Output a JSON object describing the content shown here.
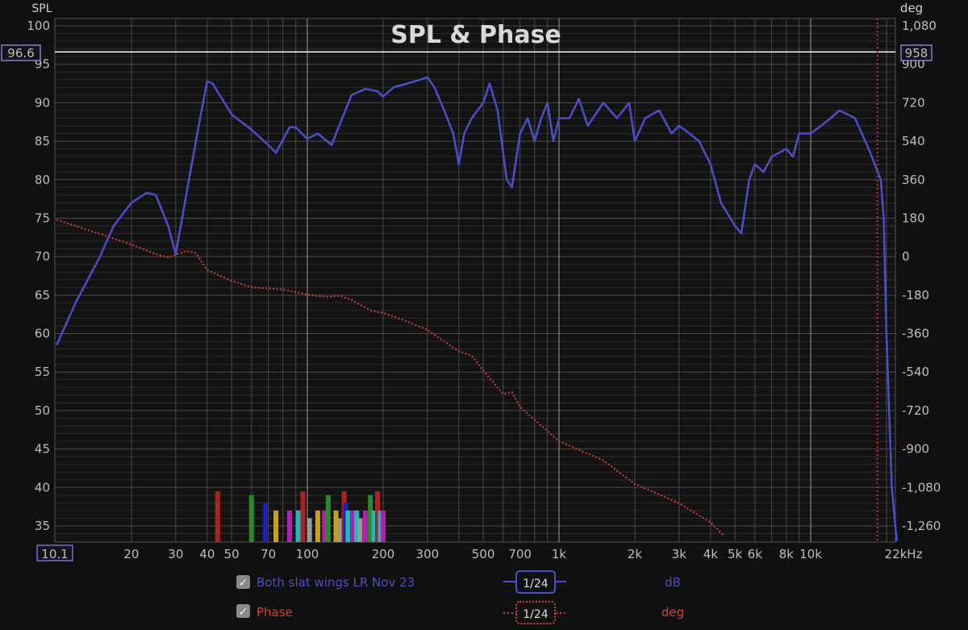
{
  "chart_data": {
    "type": "line",
    "title": "SPL & Phase",
    "ylabel": "SPL",
    "y2label": "deg",
    "xunit": "kHz",
    "xlim": [
      10.1,
      22000
    ],
    "xscale": "log",
    "ylim": [
      33,
      101
    ],
    "y2lim": [
      -1332,
      1116
    ],
    "grid": true,
    "x_ticks": [
      {
        "v": 10.1,
        "label": "10.1",
        "boxed": true
      },
      {
        "v": 20,
        "label": "20"
      },
      {
        "v": 30,
        "label": "30"
      },
      {
        "v": 40,
        "label": "40"
      },
      {
        "v": 50,
        "label": "50"
      },
      {
        "v": 70,
        "label": "70"
      },
      {
        "v": 100,
        "label": "100"
      },
      {
        "v": 200,
        "label": "200"
      },
      {
        "v": 300,
        "label": "300"
      },
      {
        "v": 500,
        "label": "500"
      },
      {
        "v": 700,
        "label": "700"
      },
      {
        "v": 1000,
        "label": "1k"
      },
      {
        "v": 2000,
        "label": "2k"
      },
      {
        "v": 3000,
        "label": "3k"
      },
      {
        "v": 4000,
        "label": "4k"
      },
      {
        "v": 5000,
        "label": "5k"
      },
      {
        "v": 6000,
        "label": "6k"
      },
      {
        "v": 8000,
        "label": "8k"
      },
      {
        "v": 10000,
        "label": "10k"
      },
      {
        "v": 22000,
        "label": "22kHz"
      }
    ],
    "y_ticks": [
      "100",
      "95",
      "90",
      "85",
      "80",
      "75",
      "70",
      "65",
      "60",
      "55",
      "50",
      "45",
      "40",
      "35"
    ],
    "y2_ticks": [
      "1,080",
      "900",
      "720",
      "540",
      "360",
      "180",
      "0",
      "-180",
      "-360",
      "-540",
      "-720",
      "-900",
      "-1,080",
      "-1,260"
    ],
    "cursor": {
      "spl": 96.6,
      "spl_label": "96.6",
      "deg_label": "958",
      "freq_marker": 18400
    },
    "series": [
      {
        "name": "Both slat wings LR Nov 23",
        "axis": "left",
        "color": "#4d4dc8",
        "smoothing": "1/24",
        "unit": "dB",
        "points": [
          [
            10.1,
            58.5
          ],
          [
            12,
            64
          ],
          [
            15,
            70
          ],
          [
            17,
            74
          ],
          [
            20,
            77
          ],
          [
            23,
            78.3
          ],
          [
            25,
            78
          ],
          [
            28,
            74
          ],
          [
            30,
            70.3
          ],
          [
            33,
            78
          ],
          [
            37,
            87
          ],
          [
            40,
            92.8
          ],
          [
            42,
            92.5
          ],
          [
            50,
            88.5
          ],
          [
            60,
            86.5
          ],
          [
            70,
            84.5
          ],
          [
            75,
            83.5
          ],
          [
            85,
            86.8
          ],
          [
            90,
            86.8
          ],
          [
            100,
            85.3
          ],
          [
            110,
            86
          ],
          [
            125,
            84.5
          ],
          [
            130,
            86
          ],
          [
            150,
            91
          ],
          [
            170,
            91.8
          ],
          [
            190,
            91.5
          ],
          [
            200,
            90.8
          ],
          [
            220,
            92
          ],
          [
            250,
            92.5
          ],
          [
            280,
            93
          ],
          [
            300,
            93.3
          ],
          [
            320,
            92
          ],
          [
            350,
            89
          ],
          [
            380,
            86
          ],
          [
            400,
            82
          ],
          [
            420,
            86
          ],
          [
            450,
            88
          ],
          [
            500,
            90
          ],
          [
            530,
            92.5
          ],
          [
            570,
            89
          ],
          [
            620,
            80
          ],
          [
            650,
            79
          ],
          [
            700,
            86
          ],
          [
            750,
            88
          ],
          [
            800,
            85
          ],
          [
            850,
            88
          ],
          [
            900,
            90
          ],
          [
            950,
            85
          ],
          [
            1000,
            88
          ],
          [
            1100,
            88
          ],
          [
            1200,
            90.5
          ],
          [
            1300,
            87
          ],
          [
            1500,
            90
          ],
          [
            1700,
            88
          ],
          [
            1900,
            90
          ],
          [
            2000,
            85
          ],
          [
            2200,
            88
          ],
          [
            2500,
            89
          ],
          [
            2800,
            86
          ],
          [
            3000,
            87
          ],
          [
            3300,
            86
          ],
          [
            3600,
            85
          ],
          [
            4000,
            82
          ],
          [
            4400,
            77
          ],
          [
            4800,
            75
          ],
          [
            5000,
            74
          ],
          [
            5300,
            73
          ],
          [
            5700,
            80
          ],
          [
            6000,
            82
          ],
          [
            6500,
            81
          ],
          [
            7000,
            83
          ],
          [
            8000,
            84
          ],
          [
            8500,
            83
          ],
          [
            9000,
            86
          ],
          [
            10000,
            86
          ],
          [
            11000,
            87
          ],
          [
            12000,
            88
          ],
          [
            13000,
            89
          ],
          [
            14000,
            88.5
          ],
          [
            15000,
            88
          ],
          [
            17000,
            84
          ],
          [
            19000,
            80
          ],
          [
            19500,
            75
          ],
          [
            20000,
            60
          ],
          [
            21000,
            40
          ],
          [
            22000,
            33
          ]
        ]
      },
      {
        "name": "Phase",
        "axis": "right",
        "color": "#d04040",
        "smoothing": "1/24",
        "unit": "deg",
        "dotted": true,
        "points": [
          [
            10.1,
            175
          ],
          [
            15,
            110
          ],
          [
            20,
            60
          ],
          [
            25,
            15
          ],
          [
            28,
            0
          ],
          [
            30,
            12
          ],
          [
            33,
            30
          ],
          [
            36,
            20
          ],
          [
            40,
            -60
          ],
          [
            50,
            -110
          ],
          [
            60,
            -140
          ],
          [
            80,
            -150
          ],
          [
            100,
            -175
          ],
          [
            120,
            -185
          ],
          [
            135,
            -180
          ],
          [
            150,
            -200
          ],
          [
            180,
            -250
          ],
          [
            200,
            -260
          ],
          [
            250,
            -300
          ],
          [
            300,
            -340
          ],
          [
            400,
            -440
          ],
          [
            450,
            -460
          ],
          [
            500,
            -530
          ],
          [
            600,
            -640
          ],
          [
            650,
            -630
          ],
          [
            700,
            -700
          ],
          [
            800,
            -760
          ],
          [
            1000,
            -860
          ],
          [
            1500,
            -950
          ],
          [
            2000,
            -1060
          ],
          [
            3000,
            -1150
          ],
          [
            4000,
            -1240
          ],
          [
            4500,
            -1300
          ]
        ]
      }
    ],
    "markers": [
      [
        44,
        "#b02020",
        39.5
      ],
      [
        60,
        "#2a8a2a",
        39
      ],
      [
        68,
        "#2020b0",
        38
      ],
      [
        75,
        "#c8a020",
        37
      ],
      [
        85,
        "#b020b0",
        37
      ],
      [
        92,
        "#20b8c0",
        37
      ],
      [
        96,
        "#b02020",
        39.5
      ],
      [
        102,
        "#999999",
        36
      ],
      [
        110,
        "#c8a020",
        37
      ],
      [
        117,
        "#b020b0",
        37
      ],
      [
        121,
        "#2a8a2a",
        39
      ],
      [
        130,
        "#c8a020",
        37
      ],
      [
        135,
        "#999999",
        36
      ],
      [
        140,
        "#b02020",
        39.5
      ],
      [
        142,
        "#2020b0",
        38
      ],
      [
        145,
        "#20b8c0",
        37
      ],
      [
        152,
        "#b020b0",
        37
      ],
      [
        157,
        "#20b8c0",
        37
      ],
      [
        162,
        "#999999",
        36
      ],
      [
        170,
        "#b020b0",
        37
      ],
      [
        178,
        "#2a8a2a",
        39
      ],
      [
        184,
        "#20b8c0",
        37
      ],
      [
        190,
        "#b02020",
        39.5
      ],
      [
        195,
        "#20b8c0",
        37
      ],
      [
        200,
        "#b020b0",
        37
      ]
    ]
  }
}
